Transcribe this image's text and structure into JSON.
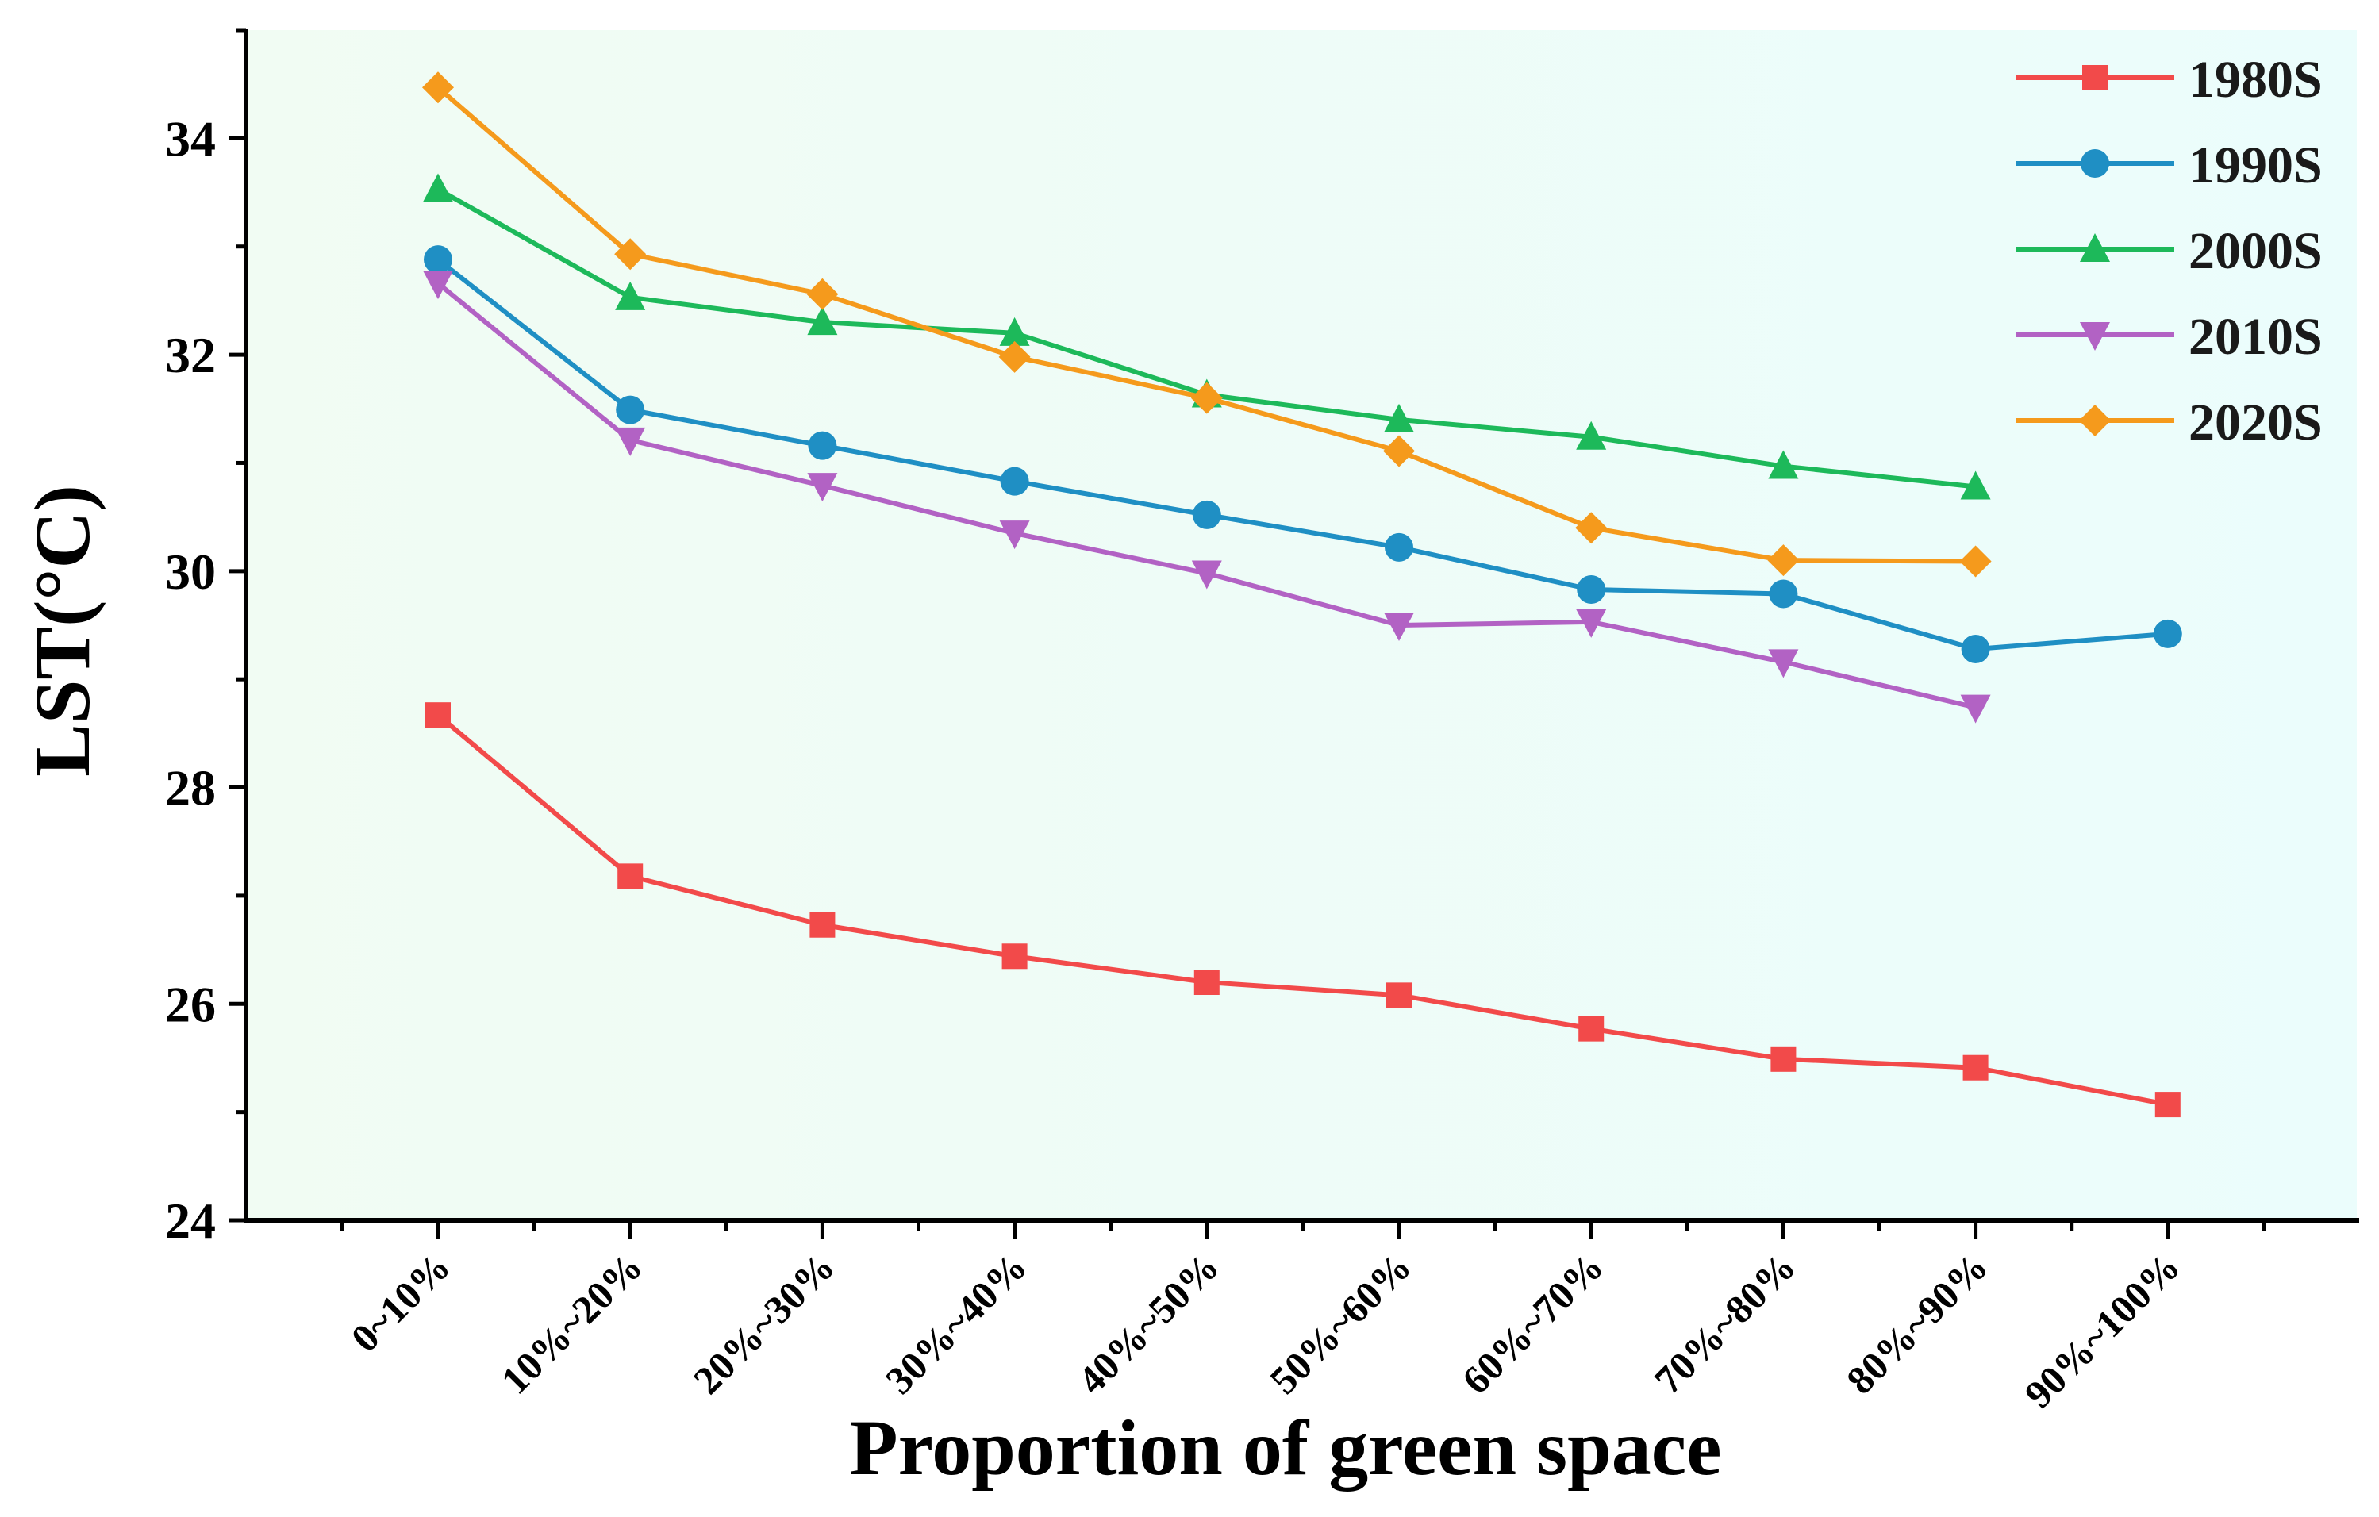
{
  "chart_data": {
    "type": "line",
    "title": "",
    "xlabel": "Proportion of green space",
    "ylabel": "LST(°C)",
    "ylim": [
      24,
      35
    ],
    "yticks": [
      24,
      26,
      28,
      30,
      32,
      34
    ],
    "categories": [
      "0~10%",
      "10%~20%",
      "20%~30%",
      "30%~40%",
      "40%~50%",
      "50%~60%",
      "60%~70%",
      "70%~80%",
      "80%~90%",
      "90%~100%"
    ],
    "legend_position": "top-right",
    "series": [
      {
        "name": "1980S",
        "color": "#f24a4a",
        "marker": "square",
        "values": [
          28.67,
          27.18,
          26.73,
          26.44,
          26.2,
          26.08,
          25.77,
          25.49,
          25.41,
          25.07
        ]
      },
      {
        "name": "1990S",
        "color": "#1f8fc4",
        "marker": "circle",
        "values": [
          32.88,
          31.49,
          31.16,
          30.83,
          30.52,
          30.22,
          29.83,
          29.79,
          29.28,
          29.42
        ]
      },
      {
        "name": "2000S",
        "color": "#1db95a",
        "marker": "triangle-up",
        "values": [
          33.53,
          32.53,
          32.3,
          32.2,
          31.63,
          31.4,
          31.24,
          30.97,
          30.78,
          null
        ]
      },
      {
        "name": "2010S",
        "color": "#b262c4",
        "marker": "triangle-down",
        "values": [
          32.66,
          31.21,
          30.79,
          30.35,
          29.98,
          29.5,
          29.53,
          29.16,
          28.74,
          null
        ]
      },
      {
        "name": "2020S",
        "color": "#f59a1c",
        "marker": "diamond",
        "values": [
          34.47,
          32.93,
          32.56,
          31.98,
          31.6,
          31.11,
          30.4,
          30.1,
          30.09,
          null
        ]
      }
    ]
  }
}
